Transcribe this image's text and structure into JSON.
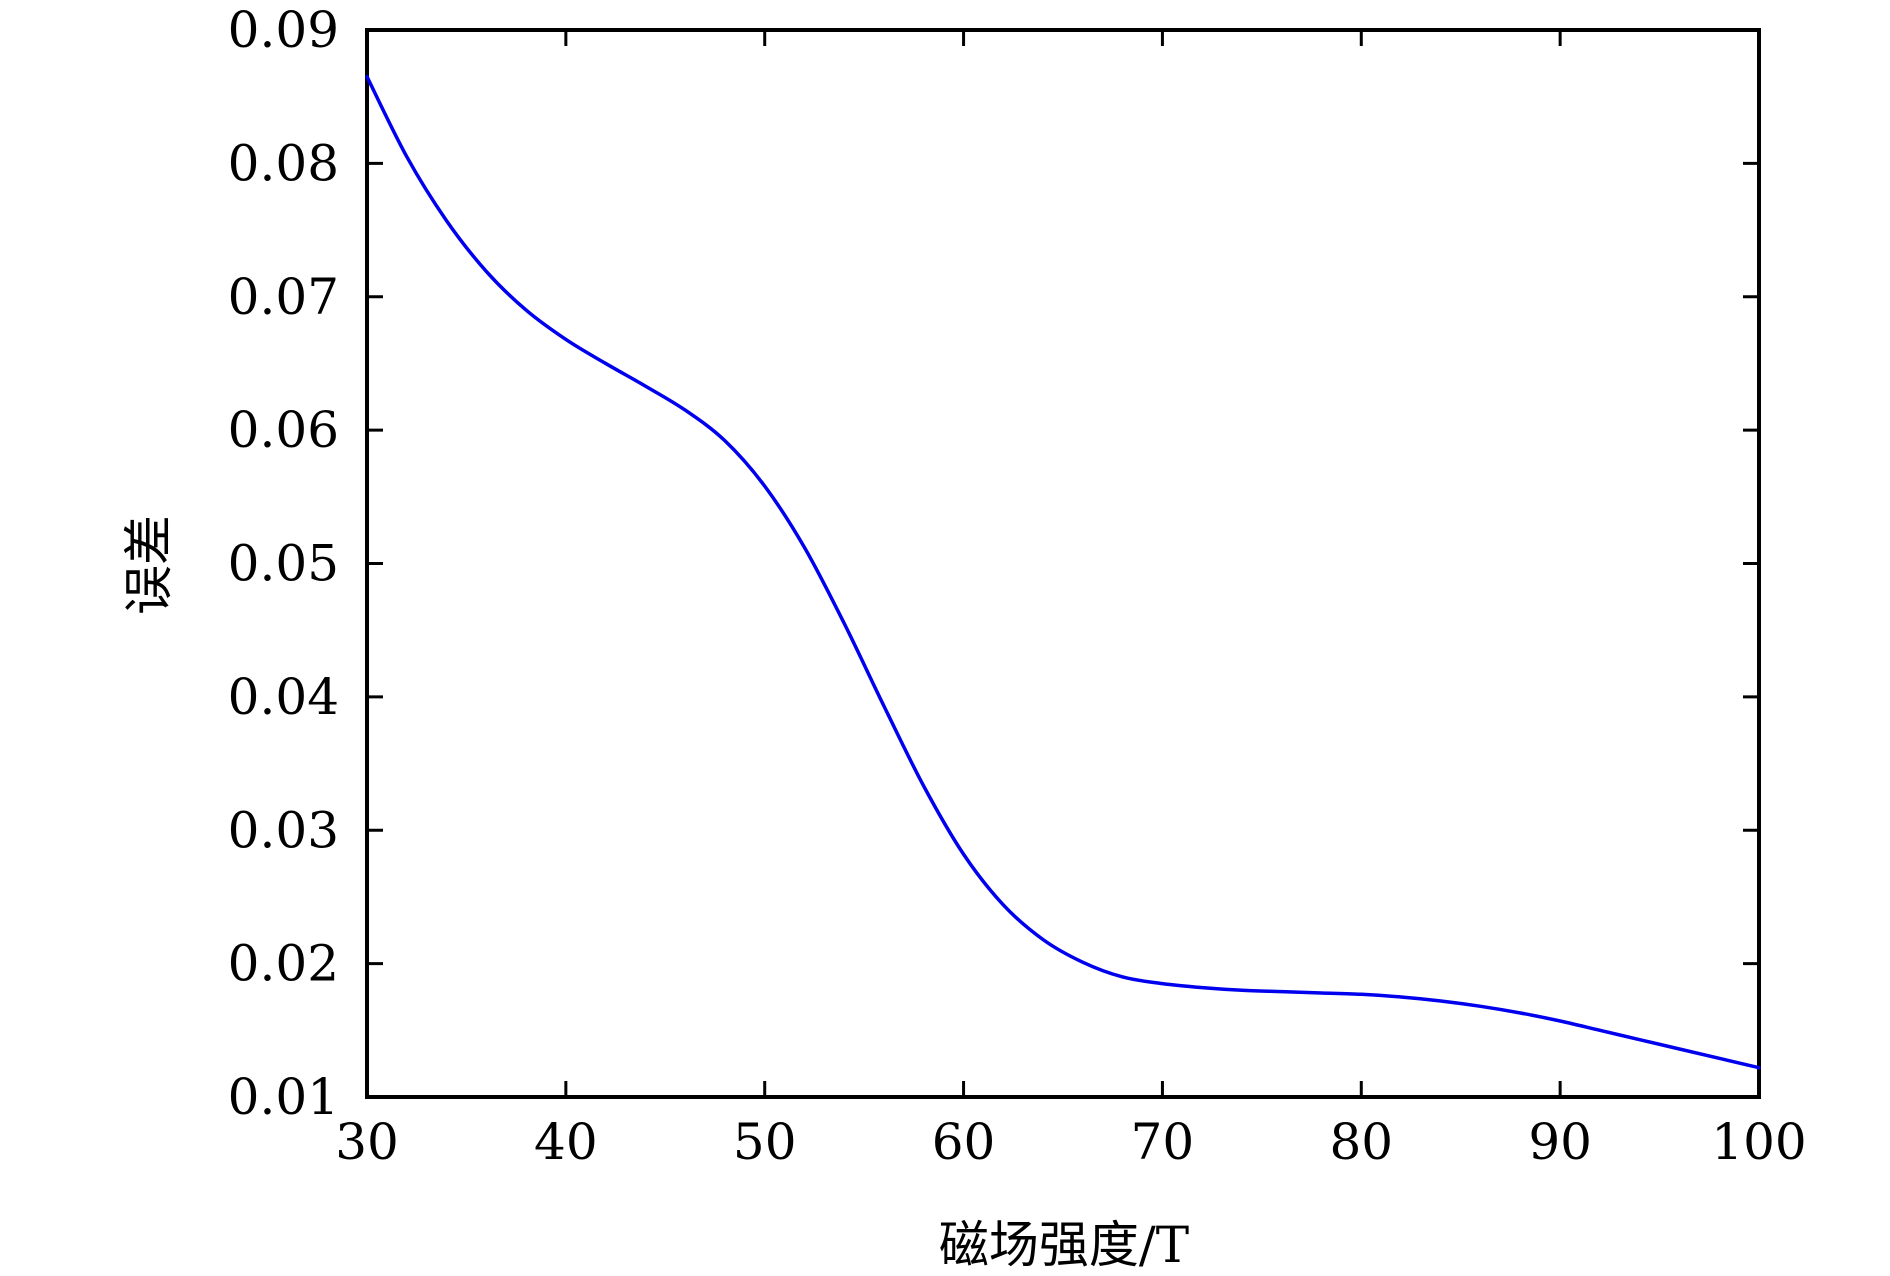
{
  "chart_data": {
    "type": "line",
    "xlabel": "磁场强度/T",
    "ylabel": "误差",
    "xlim": [
      30,
      100
    ],
    "ylim": [
      0.01,
      0.09
    ],
    "xticks": [
      30,
      40,
      50,
      60,
      70,
      80,
      90,
      100
    ],
    "xtick_labels": [
      "30",
      "40",
      "50",
      "60",
      "70",
      "80",
      "90",
      "100"
    ],
    "yticks": [
      0.01,
      0.02,
      0.03,
      0.04,
      0.05,
      0.06,
      0.07,
      0.08,
      0.09
    ],
    "ytick_labels": [
      "0.01",
      "0.02",
      "0.03",
      "0.04",
      "0.05",
      "0.06",
      "0.07",
      "0.08",
      "0.09"
    ],
    "grid": false,
    "series": [
      {
        "color": "#0000ee",
        "x": [
          30,
          32,
          34,
          36,
          38,
          40,
          42,
          44,
          46,
          48,
          50,
          52,
          54,
          56,
          58,
          60,
          62,
          64,
          66,
          68,
          70,
          72,
          74,
          76,
          78,
          80,
          82,
          84,
          86,
          88,
          90,
          92,
          94,
          96,
          98,
          100
        ],
        "y": [
          0.0865,
          0.0805,
          0.0757,
          0.0719,
          0.069,
          0.0668,
          0.065,
          0.0633,
          0.0615,
          0.0592,
          0.0558,
          0.0512,
          0.0455,
          0.0393,
          0.0333,
          0.0282,
          0.0244,
          0.0218,
          0.0201,
          0.019,
          0.0185,
          0.0182,
          0.018,
          0.0179,
          0.0178,
          0.0177,
          0.0175,
          0.0172,
          0.0168,
          0.0163,
          0.0157,
          0.015,
          0.0143,
          0.0136,
          0.0129,
          0.0122
        ]
      }
    ]
  }
}
